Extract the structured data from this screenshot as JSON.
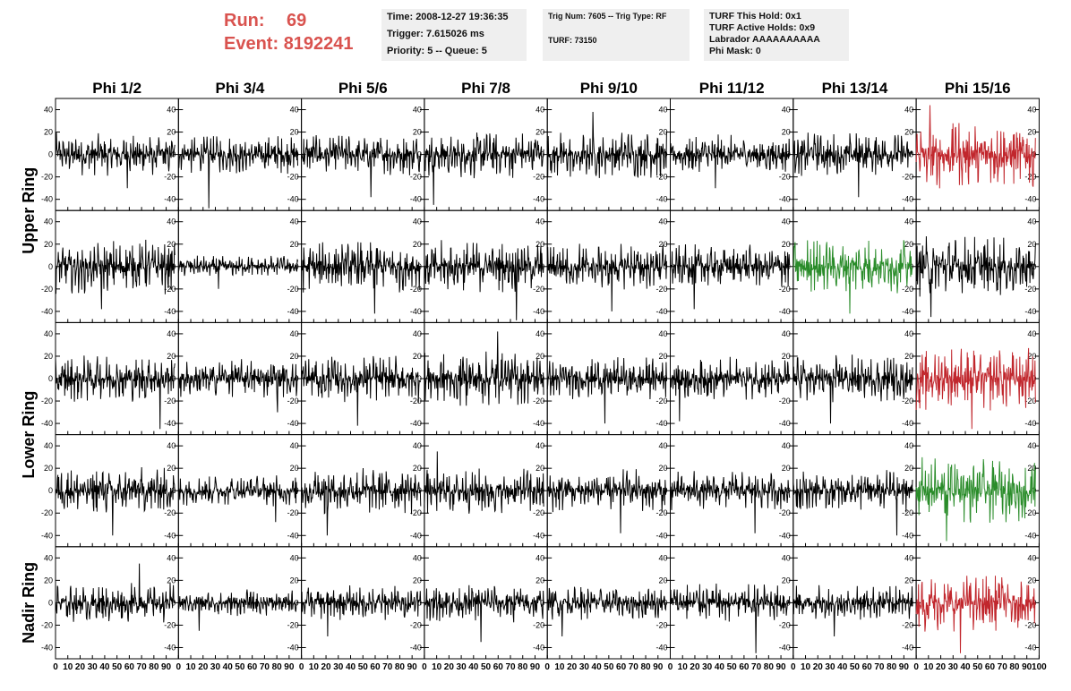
{
  "header": {
    "run_label": "Run:",
    "run_value": "69",
    "event_label": "Event:",
    "event_value": "8192241",
    "colors": {
      "run_text": "#d9534f",
      "box_bg": "#efefef"
    }
  },
  "info_time": {
    "time": "Time: 2008-12-27 19:36:35",
    "trigger": "Trigger: 7.615026 ms",
    "priority": "Priority: 5 -- Queue: 5"
  },
  "info_trig": {
    "trig": "Trig Num: 7605 -- Trig Type: RF",
    "turf": "TURF: 73150"
  },
  "info_turf": {
    "hold": "TURF This Hold: 0x1",
    "active": "TURF Active Holds: 0x9",
    "labrador": "Labrador AAAAAAAAAA",
    "mask": "Phi Mask: 0"
  },
  "chart_data": {
    "type": "line",
    "columns": [
      "Phi 1/2",
      "Phi 3/4",
      "Phi 5/6",
      "Phi 7/8",
      "Phi 9/10",
      "Phi 11/12",
      "Phi 13/14",
      "Phi 15/16"
    ],
    "ring_labels": [
      {
        "text": "Upper Ring",
        "rows": [
          0,
          1
        ]
      },
      {
        "text": "Lower Ring",
        "rows": [
          2,
          3
        ]
      },
      {
        "text": "Nadir Ring",
        "rows": [
          4
        ]
      }
    ],
    "ylim": [
      -50,
      50
    ],
    "yticks": [
      -40,
      -20,
      0,
      20,
      40
    ],
    "xlim": [
      0,
      100
    ],
    "xticks": [
      0,
      10,
      20,
      30,
      40,
      50,
      60,
      70,
      80,
      90,
      100
    ],
    "colors": {
      "normal": "#000000",
      "red": "#c1272d",
      "green": "#2a8c2a"
    },
    "cells": [
      [
        {
          "amp": 20,
          "color": "black",
          "spike": -30
        },
        {
          "amp": 18,
          "color": "black",
          "spike": -48
        },
        {
          "amp": 20,
          "color": "black",
          "spike": -38
        },
        {
          "amp": 22,
          "color": "black",
          "spike": -45
        },
        {
          "amp": 22,
          "color": "black",
          "spike": 38
        },
        {
          "amp": 18,
          "color": "black",
          "spike": -30
        },
        {
          "amp": 20,
          "color": "black",
          "spike": -38
        },
        {
          "amp": 32,
          "color": "red",
          "spike": 44
        }
      ],
      [
        {
          "amp": 25,
          "color": "black",
          "spike": -38
        },
        {
          "amp": 10,
          "color": "black",
          "spike": -20
        },
        {
          "amp": 24,
          "color": "black",
          "spike": -42
        },
        {
          "amp": 24,
          "color": "black",
          "spike": -50
        },
        {
          "amp": 22,
          "color": "black",
          "spike": -40
        },
        {
          "amp": 20,
          "color": "black",
          "spike": -38
        },
        {
          "amp": 26,
          "color": "green",
          "spike": -42
        },
        {
          "amp": 28,
          "color": "black",
          "spike": -45
        }
      ],
      [
        {
          "amp": 22,
          "color": "black",
          "spike": -45
        },
        {
          "amp": 18,
          "color": "black",
          "spike": -30
        },
        {
          "amp": 22,
          "color": "black",
          "spike": -42
        },
        {
          "amp": 26,
          "color": "black",
          "spike": 42
        },
        {
          "amp": 20,
          "color": "black",
          "spike": -40
        },
        {
          "amp": 20,
          "color": "black",
          "spike": -38
        },
        {
          "amp": 22,
          "color": "black",
          "spike": -40
        },
        {
          "amp": 30,
          "color": "red",
          "spike": -45
        }
      ],
      [
        {
          "amp": 22,
          "color": "black",
          "spike": -40
        },
        {
          "amp": 14,
          "color": "black",
          "spike": -28
        },
        {
          "amp": 22,
          "color": "black",
          "spike": -40
        },
        {
          "amp": 22,
          "color": "black",
          "spike": 35
        },
        {
          "amp": 20,
          "color": "black",
          "spike": -38
        },
        {
          "amp": 18,
          "color": "black",
          "spike": -38
        },
        {
          "amp": 20,
          "color": "black",
          "spike": -40
        },
        {
          "amp": 30,
          "color": "green",
          "spike": -45
        }
      ],
      [
        {
          "amp": 18,
          "color": "black",
          "spike": 35
        },
        {
          "amp": 12,
          "color": "black",
          "spike": -25
        },
        {
          "amp": 16,
          "color": "black",
          "spike": -30
        },
        {
          "amp": 18,
          "color": "black",
          "spike": -35
        },
        {
          "amp": 16,
          "color": "black",
          "spike": -30
        },
        {
          "amp": 18,
          "color": "black",
          "spike": -45
        },
        {
          "amp": 16,
          "color": "black",
          "spike": -30
        },
        {
          "amp": 26,
          "color": "red",
          "spike": -45
        }
      ]
    ]
  }
}
